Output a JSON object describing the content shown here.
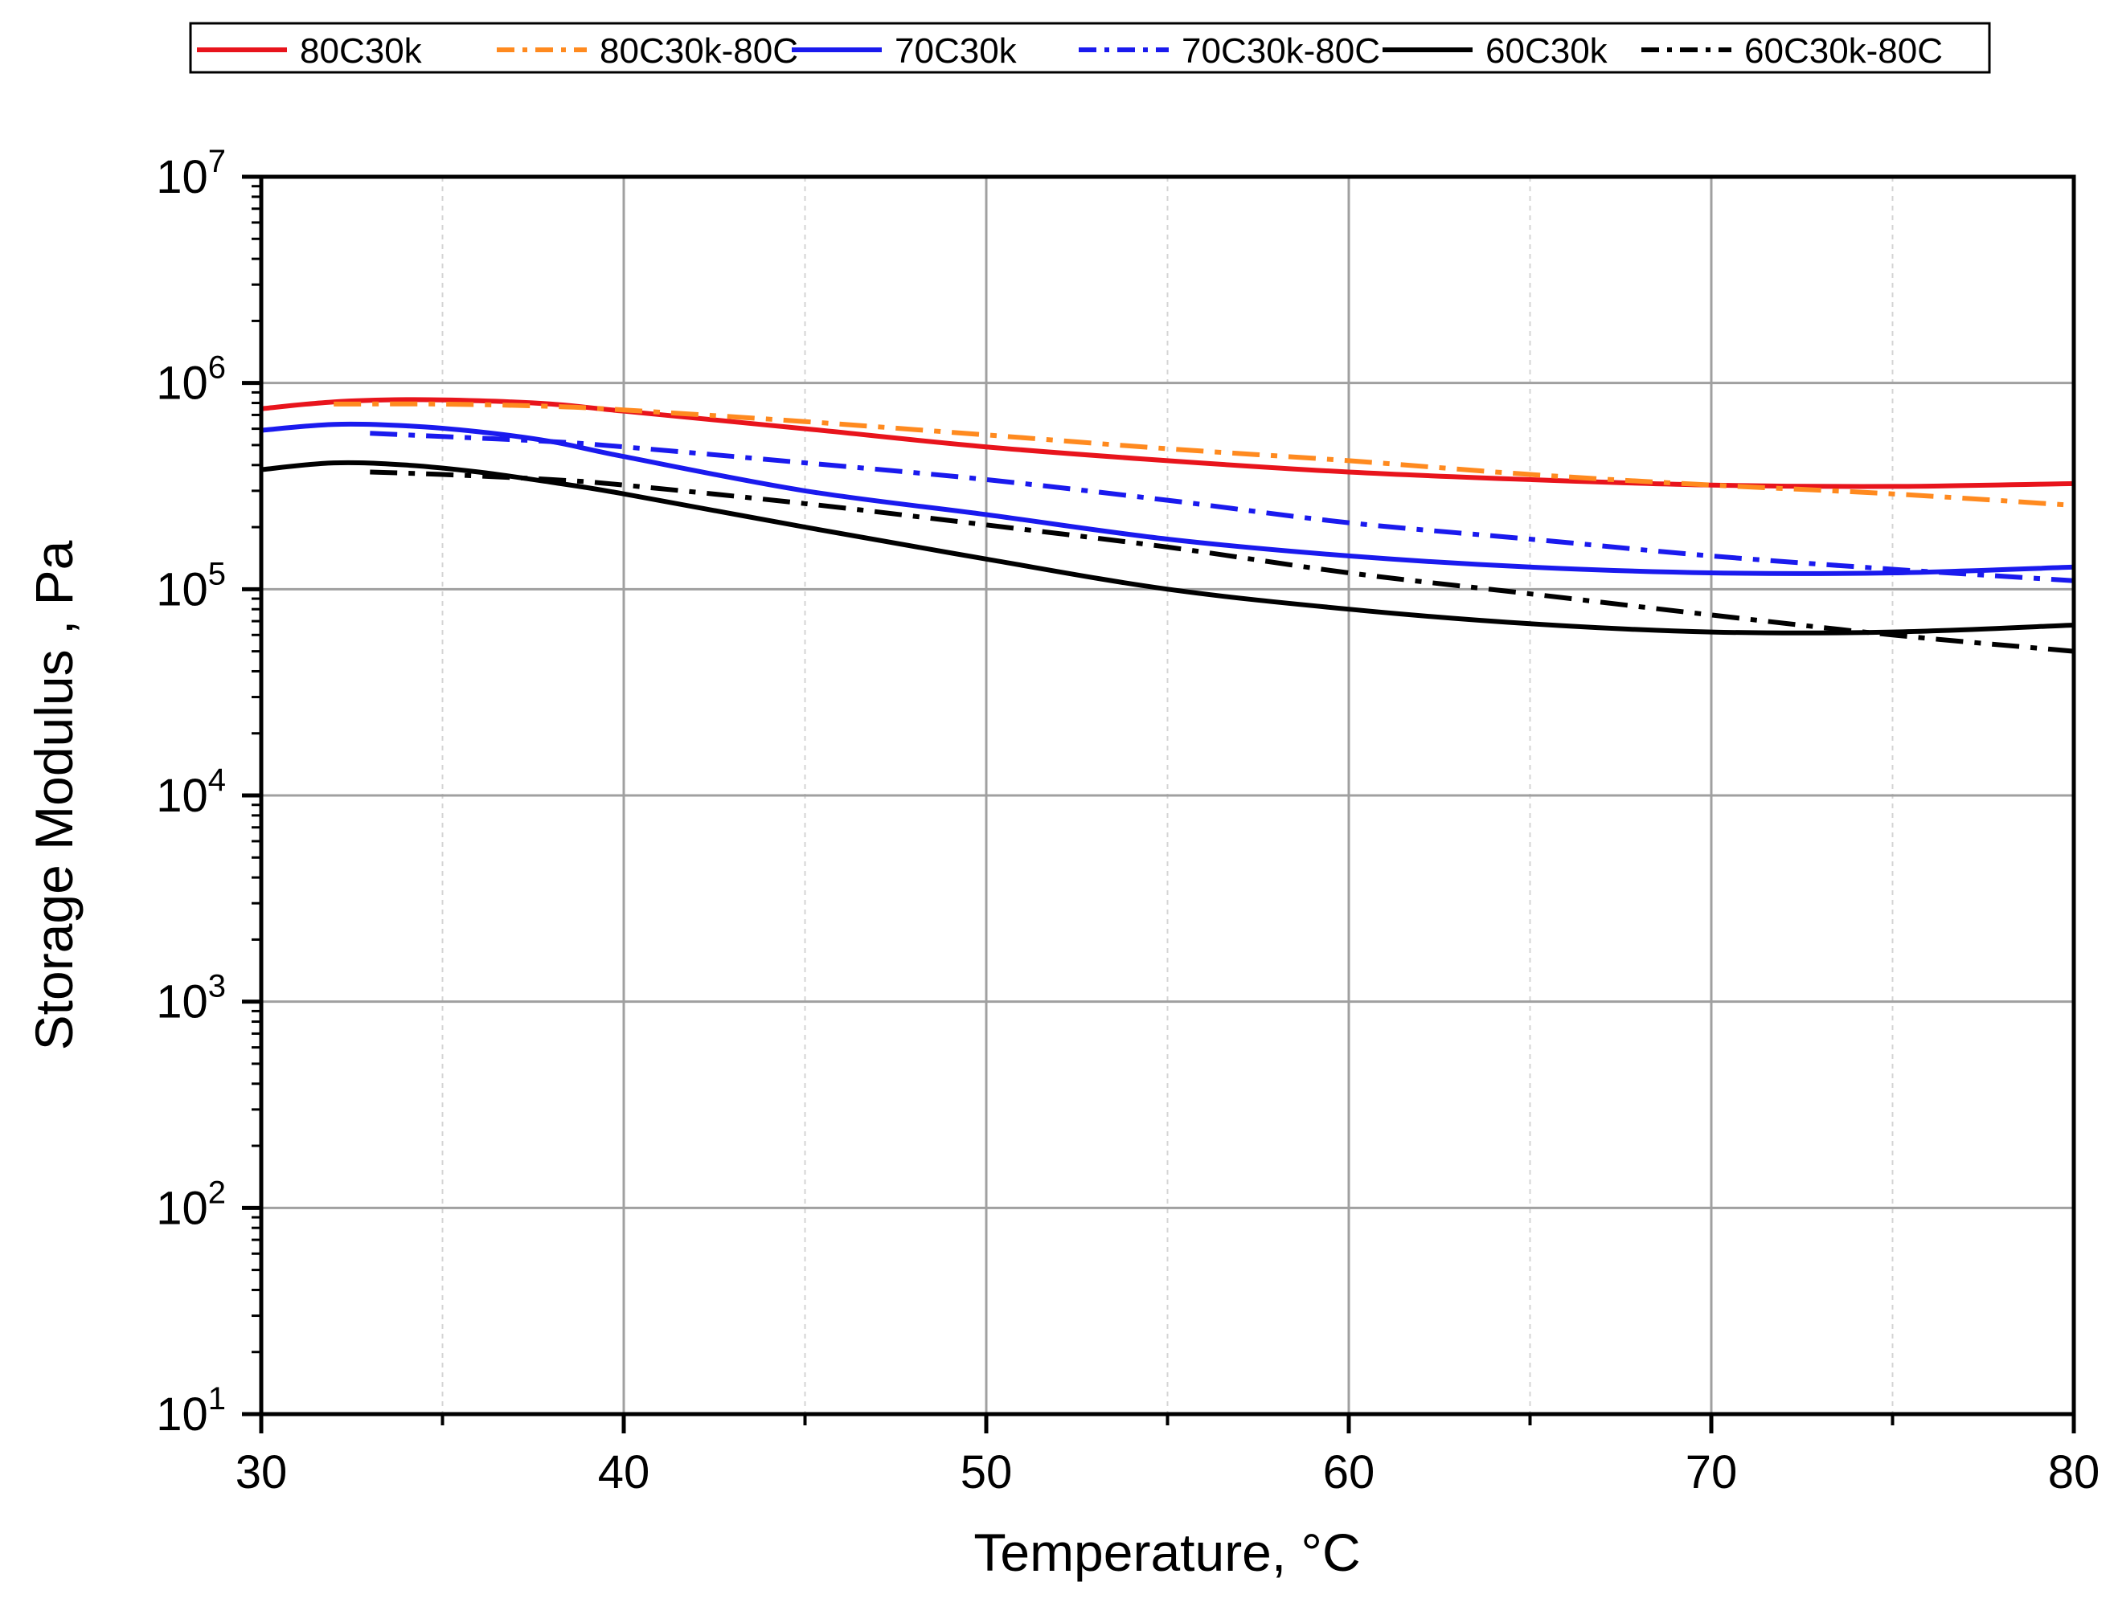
{
  "chart_data": {
    "type": "line",
    "title": "",
    "xlabel": "Temperature, °C",
    "ylabel": "Storage Modulus , Pa",
    "xlim": [
      30,
      80
    ],
    "ylim": [
      10,
      10000000
    ],
    "yscale": "log",
    "grid": true,
    "legend_position": "top",
    "x_ticks": [
      "30",
      "40",
      "50",
      "60",
      "70",
      "80"
    ],
    "y_ticks": [
      {
        "base": "10",
        "exp": "1"
      },
      {
        "base": "10",
        "exp": "2"
      },
      {
        "base": "10",
        "exp": "3"
      },
      {
        "base": "10",
        "exp": "4"
      },
      {
        "base": "10",
        "exp": "5"
      },
      {
        "base": "10",
        "exp": "6"
      },
      {
        "base": "10",
        "exp": "7"
      }
    ],
    "series": [
      {
        "name": "80C30k",
        "color": "#e8141c",
        "style": "solid",
        "x": [
          30,
          32,
          34,
          36,
          38,
          40,
          45,
          50,
          55,
          60,
          65,
          70,
          75,
          80
        ],
        "y": [
          750000,
          810000,
          830000,
          820000,
          790000,
          730000,
          600000,
          490000,
          420000,
          370000,
          340000,
          320000,
          315000,
          325000
        ]
      },
      {
        "name": "80C30k-80C",
        "color": "#ff8a1f",
        "style": "dashdot",
        "x": [
          32,
          35,
          38,
          40,
          45,
          50,
          55,
          60,
          65,
          70,
          75,
          80
        ],
        "y": [
          790000,
          790000,
          770000,
          740000,
          650000,
          560000,
          480000,
          420000,
          360000,
          320000,
          290000,
          255000
        ]
      },
      {
        "name": "70C30k",
        "color": "#1a1aee",
        "style": "solid",
        "x": [
          30,
          32,
          34,
          36,
          38,
          40,
          45,
          50,
          55,
          60,
          65,
          70,
          75,
          80
        ],
        "y": [
          590000,
          630000,
          620000,
          580000,
          520000,
          440000,
          300000,
          230000,
          175000,
          145000,
          128000,
          120000,
          120000,
          128000
        ]
      },
      {
        "name": "70C30k-80C",
        "color": "#1a1aee",
        "style": "dashdot",
        "x": [
          33,
          35,
          38,
          40,
          45,
          50,
          55,
          60,
          65,
          70,
          75,
          80
        ],
        "y": [
          570000,
          550000,
          520000,
          490000,
          410000,
          340000,
          270000,
          210000,
          175000,
          145000,
          125000,
          110000
        ]
      },
      {
        "name": "60C30k",
        "color": "#000000",
        "style": "solid",
        "x": [
          30,
          32,
          34,
          36,
          38,
          40,
          45,
          50,
          55,
          60,
          65,
          70,
          75,
          80
        ],
        "y": [
          380000,
          410000,
          400000,
          370000,
          330000,
          290000,
          200000,
          140000,
          100000,
          80000,
          68000,
          62000,
          62000,
          67000
        ]
      },
      {
        "name": "60C30k-80C",
        "color": "#000000",
        "style": "dashdot",
        "x": [
          33,
          35,
          38,
          40,
          45,
          50,
          55,
          60,
          65,
          70,
          75,
          80
        ],
        "y": [
          370000,
          360000,
          340000,
          320000,
          260000,
          205000,
          160000,
          120000,
          95000,
          75000,
          60000,
          50000
        ]
      }
    ]
  }
}
